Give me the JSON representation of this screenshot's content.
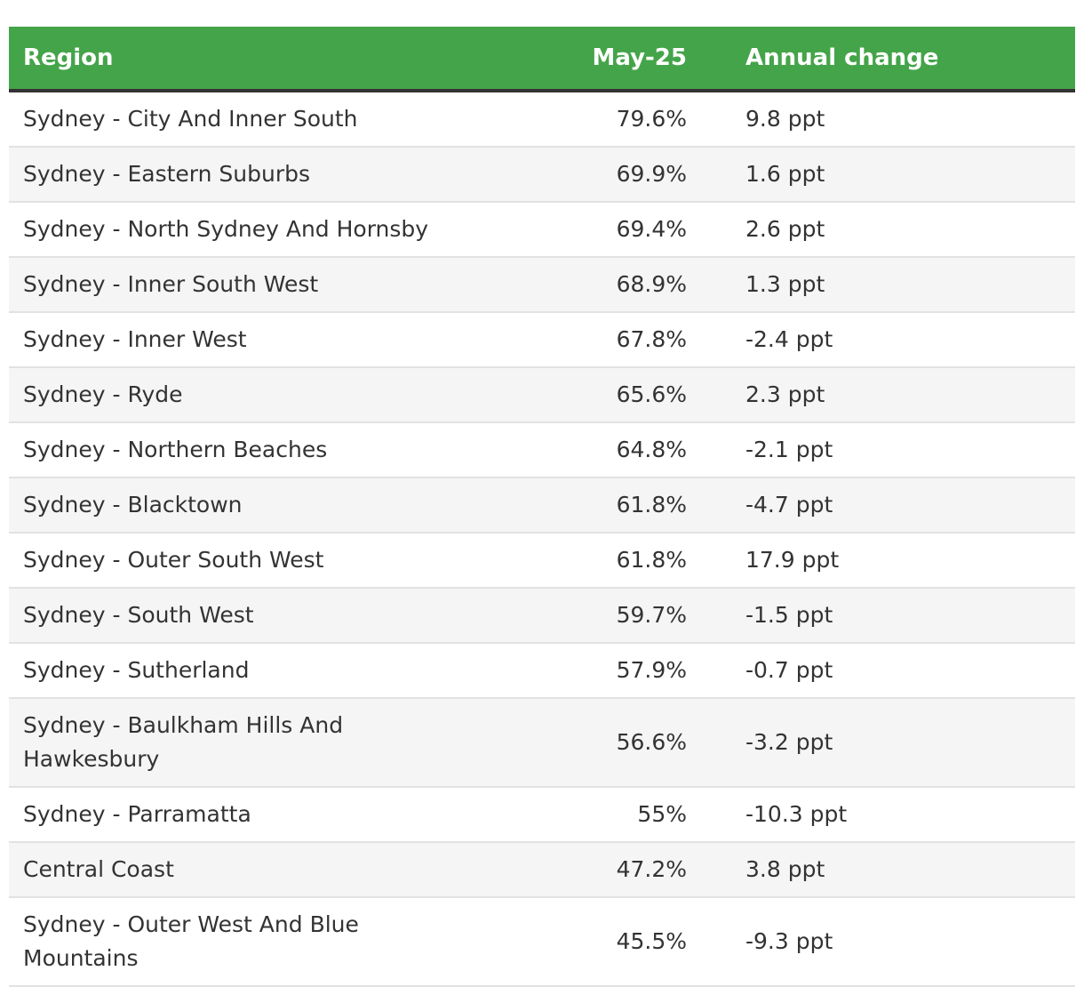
{
  "table": {
    "headers": {
      "region": "Region",
      "value": "May-25",
      "change": "Annual change"
    },
    "rows": [
      {
        "region": "Sydney - City And Inner South",
        "value": "79.6%",
        "change": "9.8 ppt"
      },
      {
        "region": "Sydney - Eastern Suburbs",
        "value": "69.9%",
        "change": "1.6 ppt"
      },
      {
        "region": "Sydney - North Sydney And Hornsby",
        "value": "69.4%",
        "change": "2.6 ppt"
      },
      {
        "region": "Sydney - Inner South West",
        "value": "68.9%",
        "change": "1.3 ppt"
      },
      {
        "region": "Sydney - Inner West",
        "value": "67.8%",
        "change": "-2.4 ppt"
      },
      {
        "region": "Sydney - Ryde",
        "value": "65.6%",
        "change": "2.3 ppt"
      },
      {
        "region": "Sydney - Northern Beaches",
        "value": "64.8%",
        "change": "-2.1 ppt"
      },
      {
        "region": "Sydney - Blacktown",
        "value": "61.8%",
        "change": "-4.7 ppt"
      },
      {
        "region": "Sydney - Outer South West",
        "value": "61.8%",
        "change": "17.9 ppt"
      },
      {
        "region": "Sydney - South West",
        "value": "59.7%",
        "change": "-1.5 ppt"
      },
      {
        "region": "Sydney - Sutherland",
        "value": "57.9%",
        "change": "-0.7 ppt"
      },
      {
        "region": "Sydney - Baulkham Hills And Hawkesbury",
        "value": "56.6%",
        "change": "-3.2 ppt"
      },
      {
        "region": "Sydney - Parramatta",
        "value": "55%",
        "change": "-10.3 ppt"
      },
      {
        "region": "Central Coast",
        "value": "47.2%",
        "change": "3.8 ppt"
      },
      {
        "region": "Sydney - Outer West And Blue Mountains",
        "value": "45.5%",
        "change": "-9.3 ppt"
      }
    ]
  },
  "colors": {
    "header_bg": "#44a449",
    "header_text": "#ffffff",
    "header_border": "#333333",
    "row_alt_bg": "#f5f5f5",
    "row_border": "#e2e2e2",
    "body_text": "#333333"
  }
}
